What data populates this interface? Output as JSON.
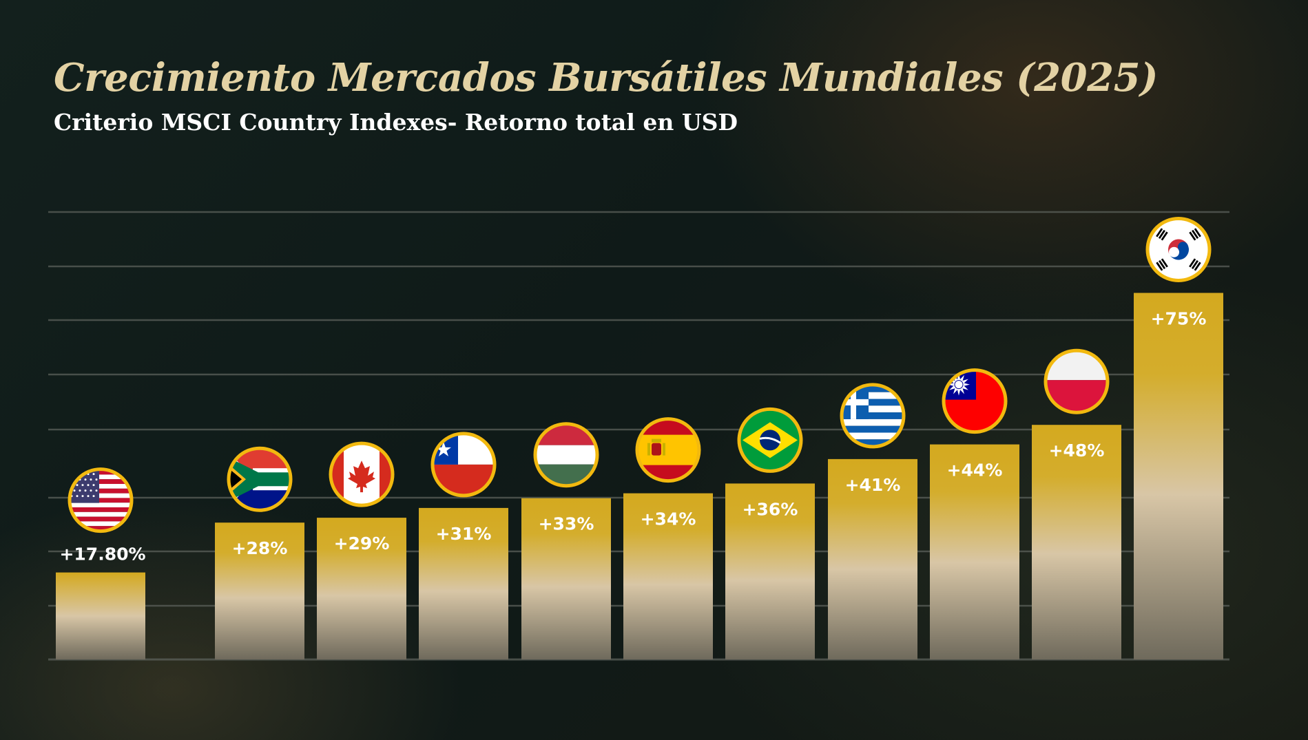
{
  "title": "Crecimiento Mercados Bursátiles Mundiales (2025)",
  "subtitle": "Criterio MSCI Country Indexes- Retorno total en USD",
  "colors": {
    "bar_top": "#d4a91f",
    "bar_mid": "#d8c6a6",
    "bar_bottom": "#6f6a5c",
    "gridline": "#5b605a",
    "flag_ring": "#f2b90f",
    "label": "#ffffff"
  },
  "chart_data": {
    "type": "bar",
    "title": "Crecimiento Mercados Bursátiles Mundiales (2025)",
    "subtitle": "Criterio MSCI Country Indexes- Retorno total en USD",
    "xlabel": "",
    "ylabel": "",
    "ylim": [
      0,
      82
    ],
    "grid": true,
    "legend": "none",
    "categories": [
      "Estados Unidos",
      "Sudáfrica",
      "Canadá",
      "Chile",
      "Hungría",
      "España",
      "Brasil",
      "Grecia",
      "Taiwán",
      "Polonia",
      "Corea del Sur"
    ],
    "flags": [
      "us-flag",
      "south-africa-flag",
      "canada-flag",
      "chile-flag",
      "hungary-flag",
      "spain-flag",
      "brazil-flag",
      "greece-flag",
      "taiwan-flag",
      "poland-flag",
      "south-korea-flag"
    ],
    "values": [
      17.8,
      28,
      29,
      31,
      33,
      34,
      36,
      41,
      44,
      48,
      75
    ],
    "labels": [
      "+17.80%",
      "+28%",
      "+29%",
      "+31%",
      "+33%",
      "+34%",
      "+36%",
      "+41%",
      "+44%",
      "+48%",
      "+75%"
    ]
  }
}
